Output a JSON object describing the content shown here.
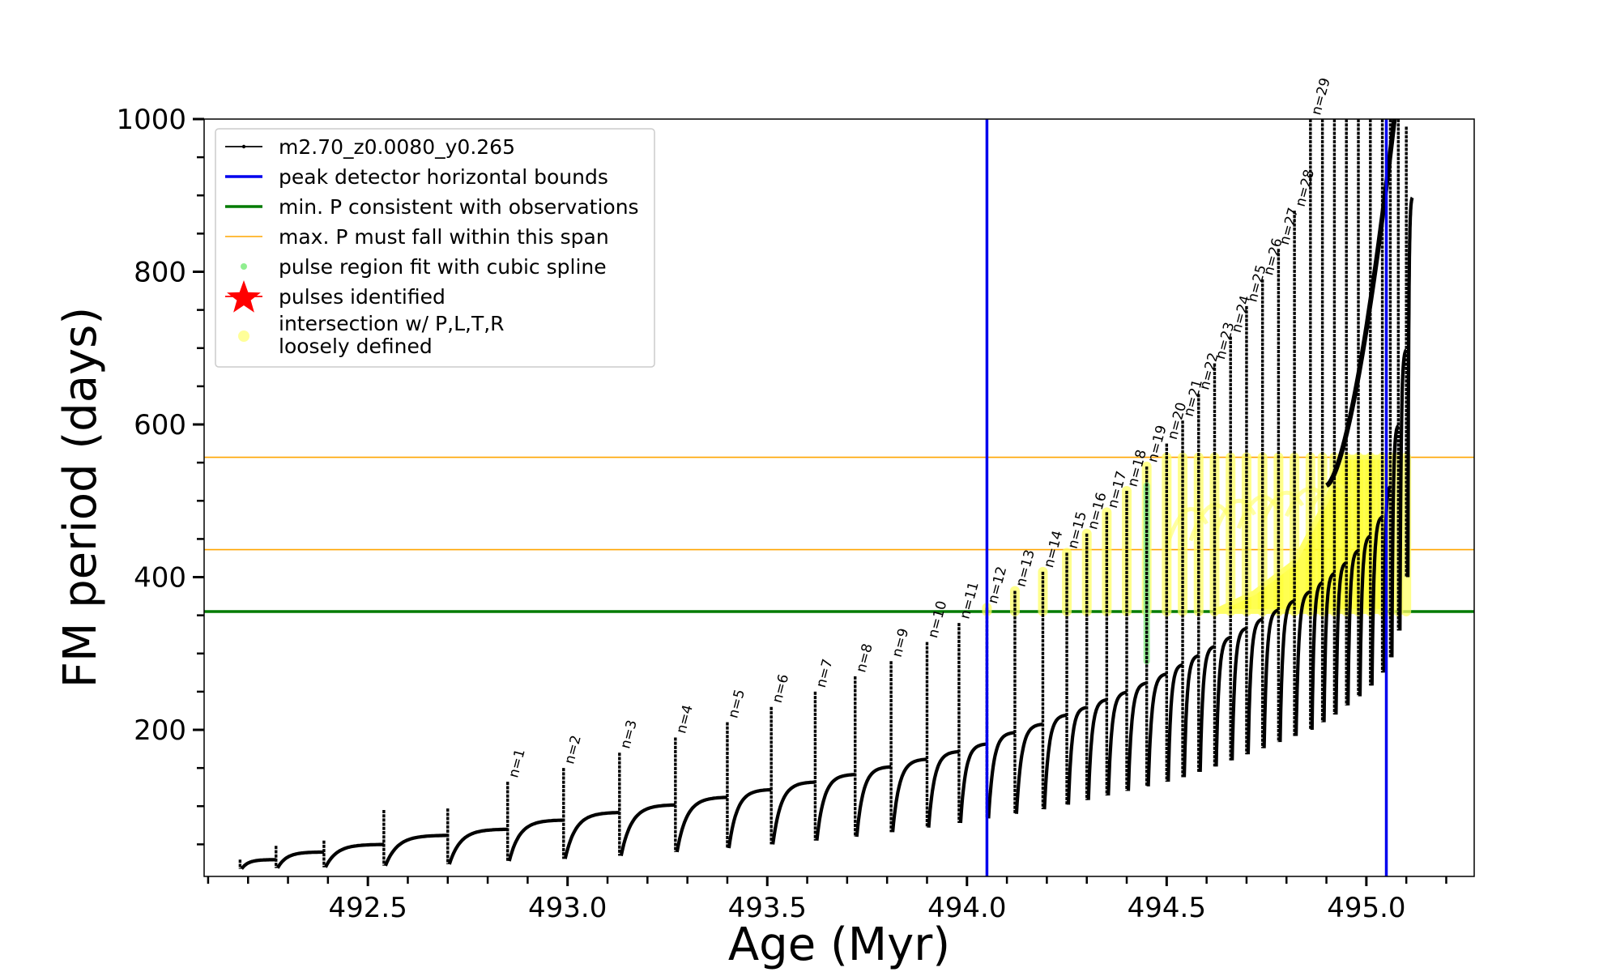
{
  "chart_data": {
    "type": "line",
    "xlabel": "Age (Myr)",
    "ylabel": "FM period (days)",
    "xlim": [
      492.09,
      495.27
    ],
    "ylim": [
      8,
      1000
    ],
    "x_ticks": [
      492.5,
      493.0,
      493.5,
      494.0,
      494.5,
      495.0
    ],
    "x_tick_labels": [
      "492.5",
      "493.0",
      "493.5",
      "494.0",
      "494.5",
      "495.0"
    ],
    "y_ticks": [
      200,
      400,
      600,
      800,
      1000
    ],
    "y_tick_labels": [
      "200",
      "400",
      "600",
      "800",
      "1000"
    ],
    "grid": false,
    "legend_position": "upper-left",
    "legend": [
      {
        "label": "m2.70_z0.0080_y0.265",
        "style": "line-dot",
        "color": "#000000"
      },
      {
        "label": "peak detector horizontal bounds",
        "style": "line",
        "color": "#0000ee"
      },
      {
        "label": "min. P consistent with observations",
        "style": "line",
        "color": "#007a00"
      },
      {
        "label": "max. P must fall within this span",
        "style": "thin-line",
        "color": "#ffa500"
      },
      {
        "label": "pulse region fit with cubic spline",
        "style": "dot",
        "color": "#90ee90"
      },
      {
        "label": "pulses identified",
        "style": "star",
        "color": "#ff0000"
      },
      {
        "label": "intersection w/ P,L,T,R",
        "label2": "loosely defined",
        "style": "dot",
        "color": "#ffff99"
      }
    ],
    "vertical_lines": [
      {
        "x": 494.05,
        "color": "#0000ee"
      },
      {
        "x": 495.05,
        "color": "#0000ee"
      }
    ],
    "horizontal_lines": [
      {
        "y": 355,
        "color": "#007a00",
        "kind": "min"
      },
      {
        "y": 436,
        "color": "#ffa500",
        "kind": "max-low"
      },
      {
        "y": 557,
        "color": "#ffa500",
        "kind": "max-high"
      }
    ],
    "pulses": [
      {
        "x": 492.18,
        "peak": 30,
        "trough": 18,
        "base": 30,
        "label": ""
      },
      {
        "x": 492.27,
        "peak": 48,
        "trough": 19,
        "base": 40,
        "label": ""
      },
      {
        "x": 492.39,
        "peak": 55,
        "trough": 20,
        "base": 50,
        "label": ""
      },
      {
        "x": 492.54,
        "peak": 95,
        "trough": 22,
        "base": 62,
        "label": ""
      },
      {
        "x": 492.7,
        "peak": 97,
        "trough": 24,
        "base": 70,
        "label": ""
      },
      {
        "x": 492.85,
        "peak": 132,
        "trough": 28,
        "base": 82,
        "label": "n=1"
      },
      {
        "x": 492.99,
        "peak": 150,
        "trough": 31,
        "base": 92,
        "label": "n=2"
      },
      {
        "x": 493.13,
        "peak": 170,
        "trough": 35,
        "base": 102,
        "label": "n=3"
      },
      {
        "x": 493.27,
        "peak": 190,
        "trough": 40,
        "base": 112,
        "label": "n=4"
      },
      {
        "x": 493.4,
        "peak": 210,
        "trough": 45,
        "base": 122,
        "label": "n=5"
      },
      {
        "x": 493.51,
        "peak": 230,
        "trough": 50,
        "base": 132,
        "label": "n=6"
      },
      {
        "x": 493.62,
        "peak": 250,
        "trough": 55,
        "base": 142,
        "label": "n=7"
      },
      {
        "x": 493.72,
        "peak": 270,
        "trough": 60,
        "base": 152,
        "label": "n=8"
      },
      {
        "x": 493.81,
        "peak": 290,
        "trough": 66,
        "base": 162,
        "label": "n=9"
      },
      {
        "x": 493.9,
        "peak": 315,
        "trough": 72,
        "base": 172,
        "label": "n=10"
      },
      {
        "x": 493.98,
        "peak": 340,
        "trough": 78,
        "base": 182,
        "label": "n=11"
      },
      {
        "x": 494.05,
        "peak": 360,
        "trough": 84,
        "base": 197,
        "label": "n=12"
      },
      {
        "x": 494.12,
        "peak": 382,
        "trough": 90,
        "base": 208,
        "label": "n=13"
      },
      {
        "x": 494.19,
        "peak": 407,
        "trough": 96,
        "base": 220,
        "label": "n=14"
      },
      {
        "x": 494.25,
        "peak": 432,
        "trough": 102,
        "base": 230,
        "label": "n=15"
      },
      {
        "x": 494.3,
        "peak": 457,
        "trough": 108,
        "base": 240,
        "label": "n=16"
      },
      {
        "x": 494.35,
        "peak": 485,
        "trough": 114,
        "base": 250,
        "label": "n=17"
      },
      {
        "x": 494.4,
        "peak": 513,
        "trough": 120,
        "base": 262,
        "label": "n=18"
      },
      {
        "x": 494.45,
        "peak": 545,
        "trough": 126,
        "base": 274,
        "label": "n=19"
      },
      {
        "x": 494.5,
        "peak": 575,
        "trough": 132,
        "base": 286,
        "label": "n=20"
      },
      {
        "x": 494.54,
        "peak": 605,
        "trough": 138,
        "base": 298,
        "label": "n=21"
      },
      {
        "x": 494.58,
        "peak": 640,
        "trough": 145,
        "base": 310,
        "label": "n=22"
      },
      {
        "x": 494.62,
        "peak": 680,
        "trough": 152,
        "base": 322,
        "label": "n=23"
      },
      {
        "x": 494.66,
        "peak": 715,
        "trough": 160,
        "base": 334,
        "label": "n=24"
      },
      {
        "x": 494.7,
        "peak": 755,
        "trough": 168,
        "base": 346,
        "label": "n=25"
      },
      {
        "x": 494.74,
        "peak": 790,
        "trough": 176,
        "base": 358,
        "label": "n=26"
      },
      {
        "x": 494.78,
        "peak": 830,
        "trough": 184,
        "base": 370,
        "label": "n=27"
      },
      {
        "x": 494.82,
        "peak": 880,
        "trough": 192,
        "base": 382,
        "label": "n=28"
      },
      {
        "x": 494.86,
        "peak": 1000,
        "trough": 200,
        "base": 394,
        "label": "n=29"
      },
      {
        "x": 494.89,
        "peak": 1000,
        "trough": 210,
        "base": 406,
        "label": ""
      },
      {
        "x": 494.92,
        "peak": 1000,
        "trough": 220,
        "base": 420,
        "label": ""
      },
      {
        "x": 494.95,
        "peak": 1000,
        "trough": 232,
        "base": 436,
        "label": ""
      },
      {
        "x": 494.98,
        "peak": 1000,
        "trough": 244,
        "base": 455,
        "label": ""
      },
      {
        "x": 495.01,
        "peak": 1000,
        "trough": 258,
        "base": 480,
        "label": ""
      },
      {
        "x": 495.04,
        "peak": 1000,
        "trough": 275,
        "base": 520,
        "label": ""
      },
      {
        "x": 495.06,
        "peak": 1000,
        "trough": 295,
        "base": 600,
        "label": ""
      },
      {
        "x": 495.08,
        "peak": 1000,
        "trough": 330,
        "base": 700,
        "label": ""
      },
      {
        "x": 495.1,
        "peak": 990,
        "trough": 400,
        "base": 900,
        "label": ""
      }
    ]
  }
}
